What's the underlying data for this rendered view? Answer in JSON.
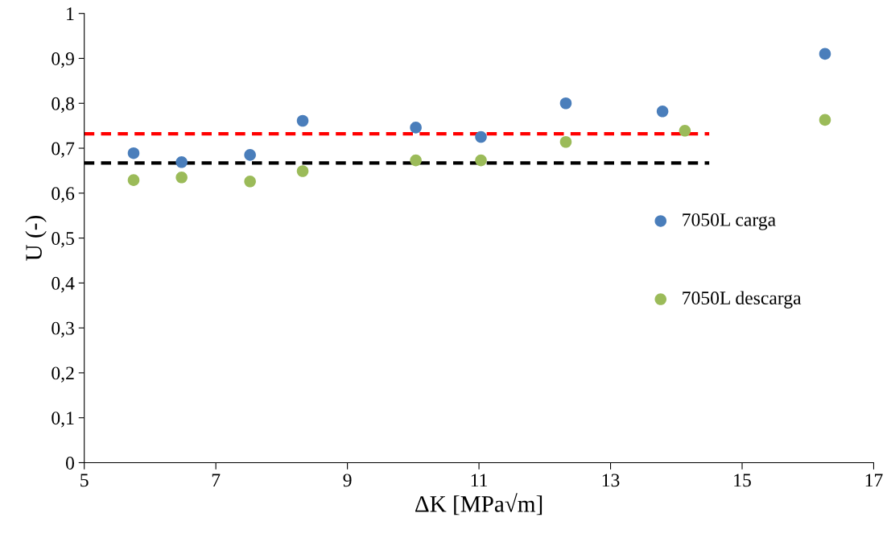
{
  "chart_data": {
    "type": "scatter",
    "xlabel": "ΔK [MPa√m]",
    "ylabel": "U (-)",
    "xlim": [
      5,
      17
    ],
    "xticks": [
      5,
      7,
      9,
      11,
      13,
      15,
      17
    ],
    "ylim": [
      0,
      1
    ],
    "yticks": [
      0,
      {
        "value": 0.1,
        "label": "0,1"
      },
      {
        "value": 0.2,
        "label": "0,2"
      },
      {
        "value": 0.3,
        "label": "0,3"
      },
      {
        "value": 0.4,
        "label": "0,4"
      },
      {
        "value": 0.5,
        "label": "0,5"
      },
      {
        "value": 0.6,
        "label": "0,6"
      },
      {
        "value": 0.7,
        "label": "0,7"
      },
      {
        "value": 0.8,
        "label": "0,8"
      },
      {
        "value": 0.9,
        "label": "0,9"
      },
      1
    ],
    "grid": false,
    "legend": "right",
    "marker": "circle",
    "series": [
      {
        "name": "7050L carga",
        "color": "#4a7ebb",
        "x": [
          5.75,
          6.48,
          7.52,
          8.32,
          10.04,
          11.03,
          12.32,
          13.79,
          16.26
        ],
        "values": [
          0.689,
          0.669,
          0.685,
          0.761,
          0.746,
          0.725,
          0.8,
          0.782,
          0.91
        ]
      },
      {
        "name": "7050L descarga",
        "color": "#9bbb59",
        "x": [
          5.75,
          6.48,
          7.52,
          8.32,
          10.04,
          11.03,
          12.32,
          14.13,
          16.26
        ],
        "values": [
          0.629,
          0.635,
          0.626,
          0.649,
          0.673,
          0.673,
          0.714,
          0.739,
          0.763
        ]
      },
      {
        "type": "line",
        "color": "#ff0000",
        "line_style": "dashed",
        "marker": "none",
        "x": [
          5,
          14.5
        ],
        "values": [
          0.732,
          0.732
        ]
      },
      {
        "type": "line",
        "color": "#000000",
        "line_style": "dashed",
        "marker": "none",
        "x": [
          5,
          14.5
        ],
        "values": [
          0.667,
          0.667
        ]
      }
    ]
  }
}
